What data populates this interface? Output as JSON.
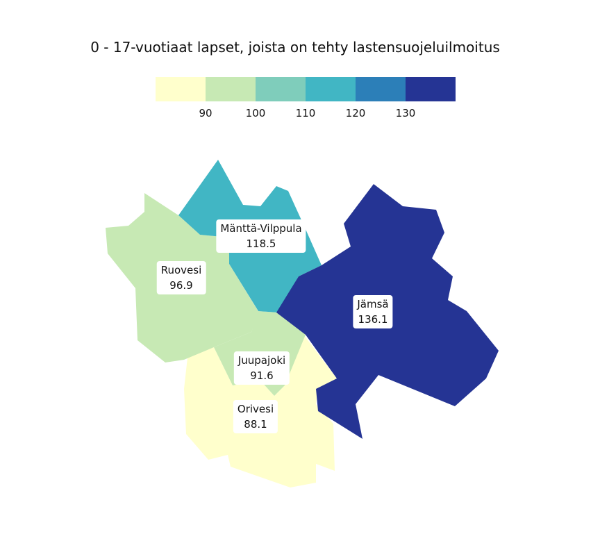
{
  "title": "0 - 17-vuotiaat lapset, joista on tehty lastensuojeluilmoitus",
  "legend": {
    "colors": [
      "#ffffcc",
      "#c7e9b4",
      "#7fcdbb",
      "#41b6c4",
      "#2c7fb8",
      "#253494"
    ],
    "ticks": [
      "90",
      "100",
      "110",
      "120",
      "130"
    ]
  },
  "regions": [
    {
      "name": "Ruovesi",
      "value": "96.9",
      "color": "#c7e9b4"
    },
    {
      "name": "Mänttä-Vilppula",
      "value": "118.5",
      "color": "#41b6c4"
    },
    {
      "name": "Jämsä",
      "value": "136.1",
      "color": "#253494"
    },
    {
      "name": "Juupajoki",
      "value": "91.6",
      "color": "#c7e9b4"
    },
    {
      "name": "Orivesi",
      "value": "88.1",
      "color": "#ffffcc"
    }
  ]
}
